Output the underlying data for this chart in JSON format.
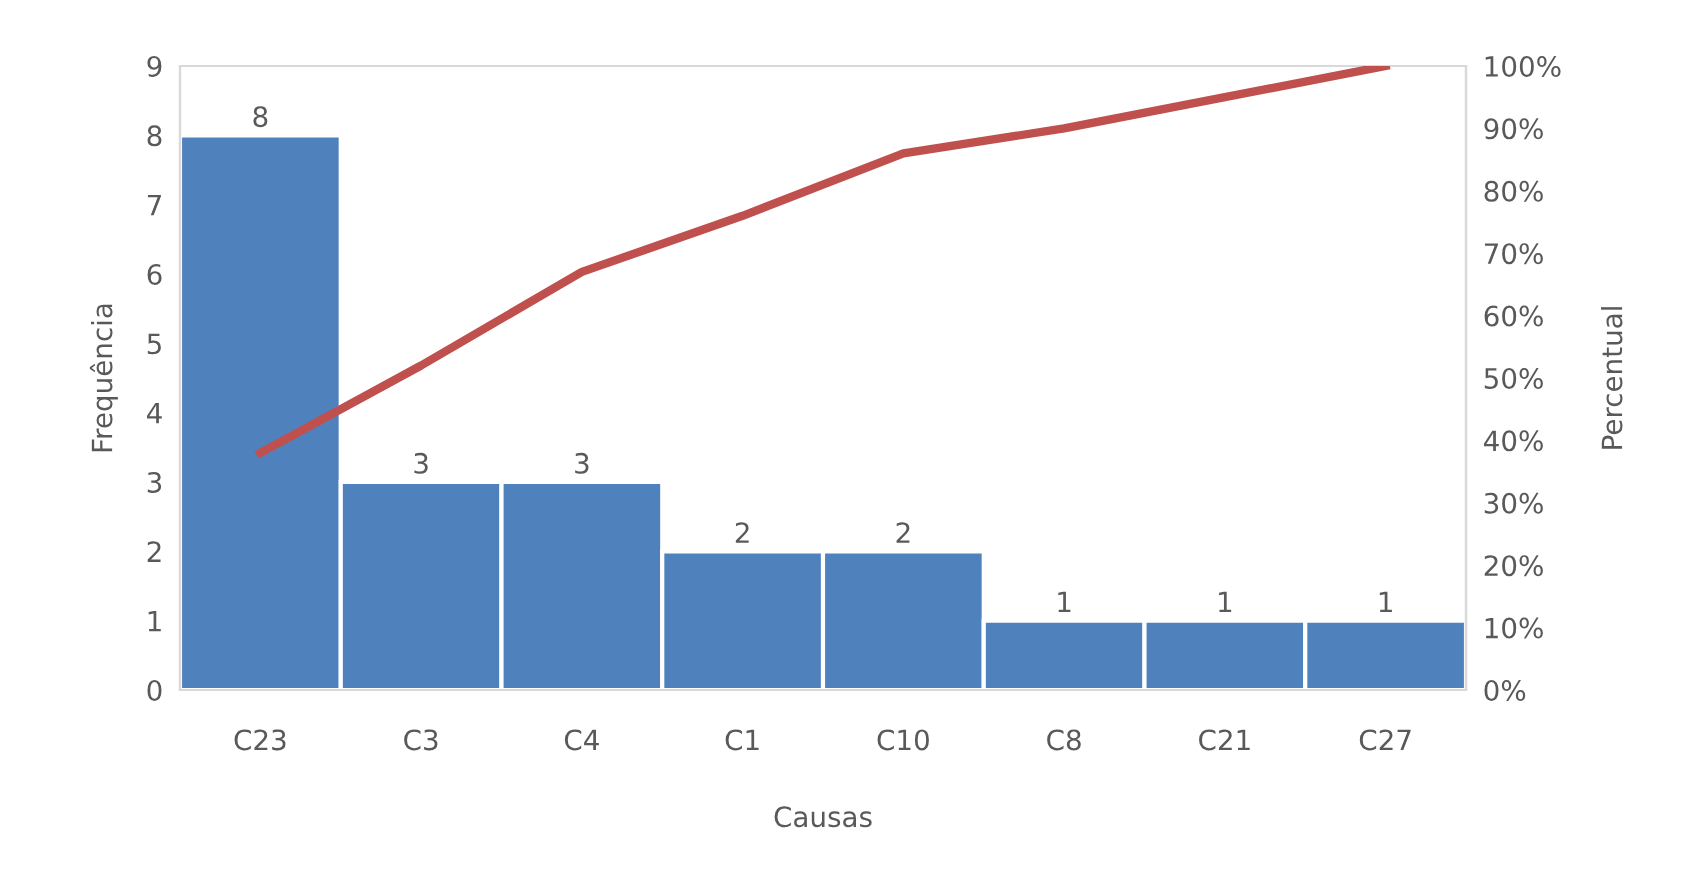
{
  "chart_data": {
    "type": "bar",
    "xlabel": "Causas",
    "ylabel": "Frequência",
    "y2label": "Percentual",
    "categories": [
      "C23",
      "C3",
      "C4",
      "C1",
      "C10",
      "C8",
      "C21",
      "C27"
    ],
    "series": [
      {
        "color": "#4f81bd",
        "values": [
          8,
          3,
          3,
          2,
          2,
          1,
          1,
          1
        ],
        "data_labels": true
      },
      {
        "type": "line",
        "axis": "y2",
        "color": "#c0504d",
        "values": [
          38,
          52,
          67,
          76,
          86,
          90,
          95,
          100
        ]
      }
    ],
    "ylim": [
      0,
      9
    ],
    "yticks": [
      0,
      1,
      2,
      3,
      4,
      5,
      6,
      7,
      8,
      9
    ],
    "y2lim": [
      0,
      100
    ],
    "y2ticks": [
      {
        "value": 0,
        "label": "0%"
      },
      {
        "value": 10,
        "label": "10%"
      },
      {
        "value": 20,
        "label": "20%"
      },
      {
        "value": 30,
        "label": "30%"
      },
      {
        "value": 40,
        "label": "40%"
      },
      {
        "value": 50,
        "label": "50%"
      },
      {
        "value": 60,
        "label": "60%"
      },
      {
        "value": 70,
        "label": "70%"
      },
      {
        "value": 80,
        "label": "80%"
      },
      {
        "value": 90,
        "label": "90%"
      },
      {
        "value": 100,
        "label": "100%"
      }
    ],
    "grid": false,
    "legend": false,
    "marker": "none",
    "line_style": "solid"
  }
}
